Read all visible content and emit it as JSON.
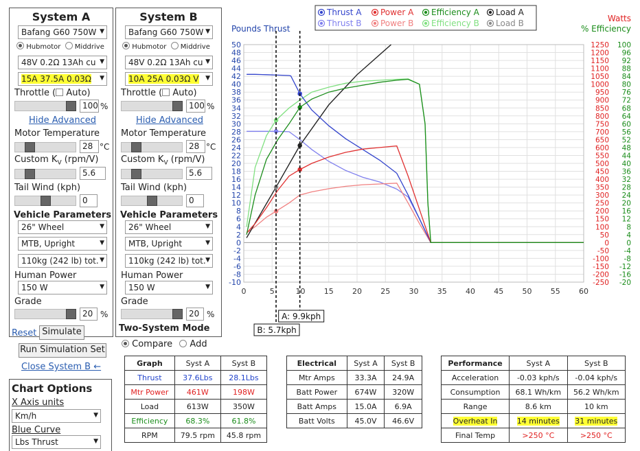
{
  "systemA": {
    "title": "System A",
    "motor": "Bafang G60 750W",
    "hubmotor_label": "Hubmotor",
    "middrive_label": "Middrive",
    "battery": "48V 0.2Ω 13Ah cu",
    "controller": "15A 37.5A 0.03Ω ",
    "throttle_label": "Throttle (",
    "auto_label": "Auto)",
    "throttle_value": "100",
    "throttle_unit": "%",
    "hide_advanced": "Hide Advanced",
    "motor_temp_label": "Motor Temperature",
    "motor_temp_value": "28",
    "motor_temp_unit": "°C",
    "kv_label": "Custom K",
    "kv_sub": "V",
    "kv_unit_label": " (rpm/V)",
    "kv_value": "5.6",
    "tailwind_label": "Tail Wind (kph)",
    "tailwind_value": "0",
    "vehicle_params": "Vehicle Parameters",
    "wheel": "26\"  Wheel",
    "posture": "MTB, Upright",
    "weight": "110kg (242 lb) tot.",
    "human_power_label": "Human Power",
    "human_power": "150 W",
    "grade_label": "Grade",
    "grade_value": "20",
    "grade_unit": "%",
    "reset_label": "Reset",
    "simulate_label": "Simulate",
    "run_sim_set": "Run Simulation Set",
    "close_system_b": "Close System B ←"
  },
  "systemB": {
    "title": "System B",
    "motor": "Bafang G60 750W",
    "hubmotor_label": "Hubmotor",
    "middrive_label": "Middrive",
    "battery": "48V 0.2Ω 13Ah cu",
    "controller": "10A 25A 0.03Ω V",
    "throttle_label": "Throttle (",
    "auto_label": "Auto)",
    "throttle_value": "100",
    "throttle_unit": "%",
    "hide_advanced": "Hide Advanced",
    "motor_temp_label": "Motor Temperature",
    "motor_temp_value": "28",
    "motor_temp_unit": "°C",
    "kv_label": "Custom K",
    "kv_sub": "V",
    "kv_unit_label": " (rpm/V)",
    "kv_value": "5.6",
    "tailwind_label": "Tail Wind (kph)",
    "tailwind_value": "0",
    "vehicle_params": "Vehicle Parameters",
    "wheel": "26\"  Wheel",
    "posture": "MTB, Upright",
    "weight": "110kg (242 lb) tot.",
    "human_power_label": "Human Power",
    "human_power": "150 W",
    "grade_label": "Grade",
    "grade_value": "20",
    "grade_unit": "%",
    "two_system_mode": "Two-System Mode",
    "compare_label": "Compare",
    "add_label": "Add"
  },
  "chartOptions": {
    "title": "Chart Options",
    "x_axis_label": "X Axis units",
    "x_axis_value": "Km/h",
    "blue_curve_label": "Blue Curve",
    "blue_curve_value": "Lbs Thrust"
  },
  "legend": [
    {
      "label": "Thrust A",
      "color": "#3344cc"
    },
    {
      "label": "Power A",
      "color": "#e03030"
    },
    {
      "label": "Efficiency A",
      "color": "#1a8c1a"
    },
    {
      "label": "Load A",
      "color": "#222222"
    },
    {
      "label": "Thrust B",
      "color": "#8080ee"
    },
    {
      "label": "Power B",
      "color": "#f08080"
    },
    {
      "label": "Efficiency B",
      "color": "#80e080"
    },
    {
      "label": "Load B",
      "color": "#888888"
    }
  ],
  "graph_table": {
    "headers": [
      "Graph",
      "Syst A",
      "Syst B"
    ],
    "rows": [
      {
        "label": "Thrust",
        "a": "37.6Lbs",
        "b": "28.1Lbs",
        "color": "#2244cc"
      },
      {
        "label": "Mtr Power",
        "a": "461W",
        "b": "198W",
        "color": "#e02020"
      },
      {
        "label": "Load",
        "a": "613W",
        "b": "350W",
        "color": "#222222"
      },
      {
        "label": "Efficiency",
        "a": "68.3%",
        "b": "61.8%",
        "color": "#1a8c1a"
      },
      {
        "label": "RPM",
        "a": "79.5 rpm",
        "b": "45.8 rpm",
        "color": "#222222"
      }
    ]
  },
  "electrical_table": {
    "headers": [
      "Electrical",
      "Syst A",
      "Syst B"
    ],
    "rows": [
      {
        "label": "Mtr Amps",
        "a": "33.3A",
        "b": "24.9A"
      },
      {
        "label": "Batt Power",
        "a": "674W",
        "b": "320W"
      },
      {
        "label": "Batt Amps",
        "a": "15.0A",
        "b": "6.9A"
      },
      {
        "label": "Batt Volts",
        "a": "45.0V",
        "b": "46.6V"
      }
    ]
  },
  "performance_table": {
    "headers": [
      "Performance",
      "Syst A",
      "Syst B"
    ],
    "rows": [
      {
        "label": "Acceleration",
        "a": "-0.03 kph/s",
        "b": "-0.04 kph/s"
      },
      {
        "label": "Consumption",
        "a": "68.1 Wh/km",
        "b": "56.2 Wh/km"
      },
      {
        "label": "Range",
        "a": "8.6 km",
        "b": "10 km"
      },
      {
        "label": "Overheat In",
        "a": "14 minutes",
        "b": "31 minutes"
      },
      {
        "label": "Final Temp",
        "a": ">250 °C",
        "b": ">250 °C"
      }
    ]
  },
  "chart_data": {
    "type": "line",
    "left_axis_title": "Pounds Thrust",
    "right_axis_title_1": "Watts",
    "right_axis_title_2": "% Efficiency",
    "xlim": [
      0,
      60
    ],
    "x_ticks": [
      0,
      5,
      10,
      15,
      20,
      25,
      30,
      35,
      40,
      45,
      50,
      55,
      60
    ],
    "ylim_thrust": [
      -10,
      50
    ],
    "thrust_ticks": [
      -10,
      -8,
      -6,
      -4,
      -2,
      0,
      2,
      4,
      6,
      8,
      10,
      12,
      14,
      16,
      18,
      20,
      22,
      24,
      26,
      28,
      30,
      32,
      34,
      36,
      38,
      40,
      42,
      44,
      46,
      48,
      50
    ],
    "ylim_watts": [
      -250,
      1250
    ],
    "watts_ticks": [
      -250,
      -200,
      -150,
      -100,
      -50,
      0,
      50,
      100,
      150,
      200,
      250,
      300,
      350,
      400,
      450,
      500,
      550,
      600,
      650,
      700,
      750,
      800,
      850,
      900,
      950,
      1000,
      1050,
      1100,
      1150,
      1200,
      1250
    ],
    "ylim_efficiency": [
      -20,
      100
    ],
    "efficiency_ticks": [
      -20,
      -16,
      -12,
      -8,
      -4,
      0,
      4,
      8,
      12,
      16,
      20,
      24,
      28,
      32,
      36,
      40,
      44,
      48,
      52,
      56,
      60,
      64,
      68,
      72,
      76,
      80,
      84,
      88,
      92,
      96,
      100
    ],
    "grid": true,
    "legend_position": "top",
    "speed_marker_a": {
      "label": "A: 9.9kph",
      "x": 9.9
    },
    "speed_marker_b": {
      "label": "B: 5.7kph",
      "x": 5.7
    },
    "series": [
      {
        "name": "Thrust A",
        "axis": "thrust",
        "color": "#3344cc",
        "x": [
          0.5,
          2,
          4,
          6,
          8,
          8.3,
          9.9,
          12,
          15,
          18,
          21,
          24,
          27,
          29,
          31,
          33,
          40,
          60
        ],
        "y": [
          42.5,
          42.5,
          42.4,
          42.3,
          42.2,
          42.1,
          37.6,
          33.5,
          29.5,
          26.2,
          23.5,
          20.8,
          17.5,
          12,
          6,
          0,
          0,
          0
        ]
      },
      {
        "name": "Power A",
        "axis": "watts",
        "color": "#e03030",
        "x": [
          0.5,
          2,
          4,
          6,
          8,
          9.9,
          12,
          15,
          18,
          21,
          24,
          27,
          29,
          31,
          33,
          40,
          60
        ],
        "y": [
          60,
          120,
          220,
          330,
          420,
          461,
          500,
          540,
          570,
          590,
          600,
          610,
          420,
          210,
          0,
          0,
          0
        ]
      },
      {
        "name": "Efficiency A",
        "axis": "efficiency",
        "color": "#1a8c1a",
        "x": [
          0.5,
          2,
          4,
          6,
          8,
          9.9,
          12,
          15,
          18,
          21,
          24,
          27,
          29,
          31,
          32,
          32.5,
          33,
          40,
          60
        ],
        "y": [
          4,
          24,
          42,
          52,
          60,
          68.3,
          72.5,
          76,
          78,
          79.5,
          81,
          82,
          82.5,
          80,
          60,
          20,
          0,
          0,
          0
        ]
      },
      {
        "name": "Load A",
        "axis": "watts",
        "color": "#222222",
        "x": [
          0.5,
          5.7,
          9.9,
          15,
          20,
          26
        ],
        "y": [
          30,
          350,
          613,
          870,
          1060,
          1250
        ]
      },
      {
        "name": "Thrust B",
        "axis": "thrust",
        "color": "#8080ee",
        "x": [
          0.5,
          2,
          4,
          5.7,
          8,
          9.9,
          12,
          15,
          18,
          21,
          24,
          27,
          29,
          31,
          33,
          40,
          60
        ],
        "y": [
          28.1,
          28.1,
          28.1,
          28.1,
          28.0,
          26.0,
          23.5,
          20.5,
          18.2,
          16.5,
          15.3,
          13.5,
          11.5,
          6,
          0,
          0,
          0
        ]
      },
      {
        "name": "Power B",
        "axis": "watts",
        "color": "#f08080",
        "x": [
          0.5,
          2,
          4,
          5.7,
          8,
          9.9,
          12,
          15,
          18,
          21,
          24,
          27,
          29,
          31,
          33,
          40,
          60
        ],
        "y": [
          60,
          100,
          160,
          198,
          250,
          300,
          320,
          340,
          355,
          365,
          370,
          375,
          250,
          120,
          0,
          0,
          0
        ]
      },
      {
        "name": "Efficiency B",
        "axis": "efficiency",
        "color": "#80e080",
        "x": [
          0.5,
          2,
          4,
          5.7,
          8,
          9.9,
          12,
          15,
          18,
          21,
          24,
          27,
          29,
          31,
          32,
          32.5,
          33,
          40,
          60
        ],
        "y": [
          8,
          38,
          54,
          61.8,
          68,
          72,
          76,
          78.5,
          80.5,
          81.5,
          82,
          82.5,
          82.7,
          80,
          60,
          20,
          0,
          0,
          0
        ]
      },
      {
        "name": "Load B",
        "axis": "watts",
        "color": "#888888",
        "x": [
          0.5,
          5.7,
          9.9,
          15,
          20,
          26
        ],
        "y": [
          30,
          350,
          613,
          870,
          1060,
          1250
        ]
      }
    ],
    "markers": [
      {
        "series": "Thrust A",
        "x": 9.9,
        "y": 37.6
      },
      {
        "series": "Power A",
        "x": 9.9,
        "y": 461
      },
      {
        "series": "Efficiency A",
        "x": 9.9,
        "y": 68.3
      },
      {
        "series": "Load A",
        "x": 9.9,
        "y": 613
      },
      {
        "series": "Thrust B",
        "x": 5.7,
        "y": 28.1
      },
      {
        "series": "Power B",
        "x": 5.7,
        "y": 198
      },
      {
        "series": "Efficiency B",
        "x": 5.7,
        "y": 61.8
      },
      {
        "series": "Load B",
        "x": 5.7,
        "y": 350
      }
    ]
  }
}
